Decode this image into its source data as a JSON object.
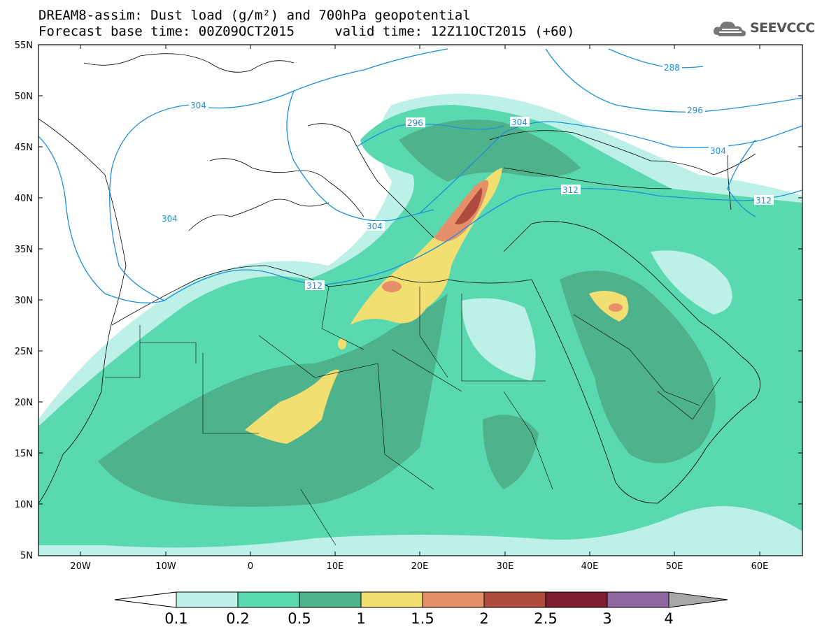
{
  "header": {
    "title": "DREAM8-assim: Dust load (g/m²) and 700hPa geopotential",
    "subtitle": "Forecast base time: 00Z09OCT2015     valid time: 12Z11OCT2015 (+60)"
  },
  "logo": {
    "text": "SEEVCCC",
    "icon": "cloud-icon"
  },
  "map": {
    "lat_labels": [
      "55N",
      "50N",
      "45N",
      "40N",
      "35N",
      "30N",
      "25N",
      "20N",
      "15N",
      "10N",
      "5N"
    ],
    "lon_labels": [
      "20W",
      "10W",
      "0",
      "10E",
      "20E",
      "30E",
      "40E",
      "50E",
      "60E"
    ],
    "contour_labels": [
      "288",
      "296",
      "296",
      "304",
      "304",
      "304",
      "304",
      "304",
      "312",
      "312",
      "312"
    ],
    "contour_color": "#1e90d6"
  },
  "colorbar": {
    "levels": [
      "0.1",
      "0.2",
      "0.5",
      "1",
      "1.5",
      "2",
      "2.5",
      "3",
      "4"
    ],
    "colors": [
      "#ffffff",
      "#bdf0e6",
      "#5ad9b0",
      "#4eb38d",
      "#f2df72",
      "#e5906a",
      "#ad4b3c",
      "#7d1c2f",
      "#8f66a0",
      "#a8a8a8"
    ]
  }
}
